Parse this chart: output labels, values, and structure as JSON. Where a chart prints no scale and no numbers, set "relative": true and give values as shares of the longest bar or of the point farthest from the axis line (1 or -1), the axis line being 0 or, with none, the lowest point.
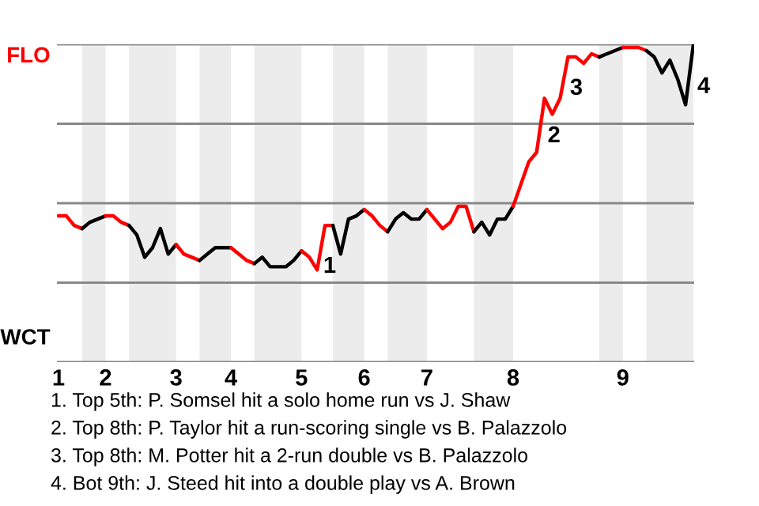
{
  "chart_data": {
    "type": "line",
    "relative": true,
    "categories": [
      "1",
      null,
      null,
      null,
      null,
      null,
      "2",
      null,
      null,
      null,
      null,
      null,
      null,
      null,
      null,
      "3",
      null,
      null,
      null,
      null,
      null,
      null,
      "4",
      null,
      null,
      null,
      null,
      null,
      null,
      null,
      null,
      "5",
      null,
      null,
      null,
      null,
      null,
      null,
      null,
      "6",
      null,
      null,
      null,
      null,
      null,
      null,
      null,
      "7",
      null,
      null,
      null,
      null,
      null,
      null,
      null,
      null,
      null,
      null,
      "8",
      null,
      null,
      null,
      null,
      null,
      null,
      null,
      null,
      null,
      null,
      null,
      null,
      null,
      "9",
      null,
      null,
      null,
      null,
      null,
      null,
      null,
      null,
      null
    ],
    "grid": "y",
    "marker": "none",
    "line_style": "solid",
    "series": [
      {
        "color": "#ff0000",
        "values": [
          0.46,
          0.46,
          0.43,
          0.42,
          null,
          null,
          null,
          null,
          null,
          null,
          null,
          null,
          null,
          null,
          null,
          null,
          null,
          null,
          null,
          null,
          null,
          null,
          null,
          null,
          null,
          null,
          null,
          null,
          null,
          null,
          null,
          null,
          null,
          null,
          null,
          null,
          null,
          null,
          null,
          null,
          null,
          null,
          null,
          null,
          null,
          null,
          null,
          null,
          null,
          null,
          null,
          null,
          null,
          null,
          null,
          null,
          null,
          null,
          null,
          null,
          null,
          null,
          null,
          null,
          null,
          null,
          null,
          null,
          null,
          null,
          null,
          null,
          null,
          null,
          null,
          null,
          null,
          null,
          null,
          null,
          null,
          null
        ]
      },
      {
        "color": "#000000",
        "values": [
          null,
          null,
          null,
          0.42,
          0.44,
          0.45,
          0.46,
          null,
          null,
          null,
          null,
          null,
          null,
          null,
          null,
          null,
          null,
          null,
          null,
          null,
          null,
          null,
          null,
          null,
          null,
          null,
          null,
          null,
          null,
          null,
          null,
          null,
          null,
          null,
          null,
          null,
          null,
          null,
          null,
          null,
          null,
          null,
          null,
          null,
          null,
          null,
          null,
          null,
          null,
          null,
          null,
          null,
          null,
          null,
          null,
          null,
          null,
          null,
          null,
          null,
          null,
          null,
          null,
          null,
          null,
          null,
          null,
          null,
          null,
          null,
          null,
          null,
          null,
          null,
          null,
          null,
          null,
          null,
          null,
          null,
          null,
          null
        ]
      },
      {
        "color": "#ff0000",
        "values": [
          null,
          null,
          null,
          null,
          null,
          null,
          0.46,
          0.46,
          0.44,
          0.43,
          null,
          null,
          null,
          null,
          null,
          null,
          null,
          null,
          null,
          null,
          null,
          null,
          null,
          null,
          null,
          null,
          null,
          null,
          null,
          null,
          null,
          null,
          null,
          null,
          null,
          null,
          null,
          null,
          null,
          null,
          null,
          null,
          null,
          null,
          null,
          null,
          null,
          null,
          null,
          null,
          null,
          null,
          null,
          null,
          null,
          null,
          null,
          null,
          null,
          null,
          null,
          null,
          null,
          null,
          null,
          null,
          null,
          null,
          null,
          null,
          null,
          null,
          null,
          null,
          null,
          null,
          null,
          null,
          null,
          null,
          null,
          null
        ]
      },
      {
        "color": "#000000",
        "values": [
          null,
          null,
          null,
          null,
          null,
          null,
          null,
          null,
          null,
          0.43,
          0.4,
          0.33,
          0.36,
          0.42,
          0.34,
          0.37,
          null,
          null,
          null,
          null,
          null,
          null,
          null,
          null,
          null,
          null,
          null,
          null,
          null,
          null,
          null,
          null,
          null,
          null,
          null,
          null,
          null,
          null,
          null,
          null,
          null,
          null,
          null,
          null,
          null,
          null,
          null,
          null,
          null,
          null,
          null,
          null,
          null,
          null,
          null,
          null,
          null,
          null,
          null,
          null,
          null,
          null,
          null,
          null,
          null,
          null,
          null,
          null,
          null,
          null,
          null,
          null,
          null,
          null,
          null,
          null,
          null,
          null,
          null,
          null,
          null,
          null
        ]
      },
      {
        "color": "#ff0000",
        "values": [
          null,
          null,
          null,
          null,
          null,
          null,
          null,
          null,
          null,
          null,
          null,
          null,
          null,
          null,
          null,
          0.37,
          0.34,
          0.33,
          0.32,
          null,
          null,
          null,
          null,
          null,
          null,
          null,
          null,
          null,
          null,
          null,
          null,
          null,
          null,
          null,
          null,
          null,
          null,
          null,
          null,
          null,
          null,
          null,
          null,
          null,
          null,
          null,
          null,
          null,
          null,
          null,
          null,
          null,
          null,
          null,
          null,
          null,
          null,
          null,
          null,
          null,
          null,
          null,
          null,
          null,
          null,
          null,
          null,
          null,
          null,
          null,
          null,
          null,
          null,
          null,
          null,
          null,
          null,
          null,
          null,
          null,
          null,
          null
        ]
      },
      {
        "color": "#000000",
        "values": [
          null,
          null,
          null,
          null,
          null,
          null,
          null,
          null,
          null,
          null,
          null,
          null,
          null,
          null,
          null,
          null,
          null,
          null,
          0.32,
          0.34,
          0.36,
          0.36,
          0.36,
          null,
          null,
          null,
          null,
          null,
          null,
          null,
          null,
          null,
          null,
          null,
          null,
          null,
          null,
          null,
          null,
          null,
          null,
          null,
          null,
          null,
          null,
          null,
          null,
          null,
          null,
          null,
          null,
          null,
          null,
          null,
          null,
          null,
          null,
          null,
          null,
          null,
          null,
          null,
          null,
          null,
          null,
          null,
          null,
          null,
          null,
          null,
          null,
          null,
          null,
          null,
          null,
          null,
          null,
          null,
          null,
          null,
          null,
          null
        ]
      },
      {
        "color": "#ff0000",
        "values": [
          null,
          null,
          null,
          null,
          null,
          null,
          null,
          null,
          null,
          null,
          null,
          null,
          null,
          null,
          null,
          null,
          null,
          null,
          null,
          null,
          null,
          null,
          0.36,
          0.34,
          0.32,
          0.31,
          null,
          null,
          null,
          null,
          null,
          null,
          null,
          null,
          null,
          null,
          null,
          null,
          null,
          null,
          null,
          null,
          null,
          null,
          null,
          null,
          null,
          null,
          null,
          null,
          null,
          null,
          null,
          null,
          null,
          null,
          null,
          null,
          null,
          null,
          null,
          null,
          null,
          null,
          null,
          null,
          null,
          null,
          null,
          null,
          null,
          null,
          null,
          null,
          null,
          null,
          null,
          null,
          null,
          null,
          null,
          null
        ]
      },
      {
        "color": "#000000",
        "values": [
          null,
          null,
          null,
          null,
          null,
          null,
          null,
          null,
          null,
          null,
          null,
          null,
          null,
          null,
          null,
          null,
          null,
          null,
          null,
          null,
          null,
          null,
          null,
          null,
          null,
          0.31,
          0.33,
          0.3,
          0.3,
          0.3,
          0.32,
          0.35,
          null,
          null,
          null,
          null,
          null,
          null,
          null,
          null,
          null,
          null,
          null,
          null,
          null,
          null,
          null,
          null,
          null,
          null,
          null,
          null,
          null,
          null,
          null,
          null,
          null,
          null,
          null,
          null,
          null,
          null,
          null,
          null,
          null,
          null,
          null,
          null,
          null,
          null,
          null,
          null,
          null,
          null,
          null,
          null,
          null,
          null,
          null,
          null,
          null,
          null
        ]
      },
      {
        "color": "#ff0000",
        "values": [
          null,
          null,
          null,
          null,
          null,
          null,
          null,
          null,
          null,
          null,
          null,
          null,
          null,
          null,
          null,
          null,
          null,
          null,
          null,
          null,
          null,
          null,
          null,
          null,
          null,
          null,
          null,
          null,
          null,
          null,
          null,
          0.35,
          0.33,
          0.29,
          0.43,
          0.43,
          null,
          null,
          null,
          null,
          null,
          null,
          null,
          null,
          null,
          null,
          null,
          null,
          null,
          null,
          null,
          null,
          null,
          null,
          null,
          null,
          null,
          null,
          null,
          null,
          null,
          null,
          null,
          null,
          null,
          null,
          null,
          null,
          null,
          null,
          null,
          null,
          null,
          null,
          null,
          null,
          null,
          null,
          null,
          null,
          null,
          null
        ]
      },
      {
        "color": "#000000",
        "values": [
          null,
          null,
          null,
          null,
          null,
          null,
          null,
          null,
          null,
          null,
          null,
          null,
          null,
          null,
          null,
          null,
          null,
          null,
          null,
          null,
          null,
          null,
          null,
          null,
          null,
          null,
          null,
          null,
          null,
          null,
          null,
          null,
          null,
          null,
          null,
          0.43,
          0.34,
          0.45,
          0.46,
          0.48,
          null,
          null,
          null,
          null,
          null,
          null,
          null,
          null,
          null,
          null,
          null,
          null,
          null,
          null,
          null,
          null,
          null,
          null,
          null,
          null,
          null,
          null,
          null,
          null,
          null,
          null,
          null,
          null,
          null,
          null,
          null,
          null,
          null,
          null,
          null,
          null,
          null,
          null,
          null,
          null,
          null,
          null
        ]
      },
      {
        "color": "#ff0000",
        "values": [
          null,
          null,
          null,
          null,
          null,
          null,
          null,
          null,
          null,
          null,
          null,
          null,
          null,
          null,
          null,
          null,
          null,
          null,
          null,
          null,
          null,
          null,
          null,
          null,
          null,
          null,
          null,
          null,
          null,
          null,
          null,
          null,
          null,
          null,
          null,
          null,
          null,
          null,
          null,
          0.48,
          0.46,
          0.43,
          0.41,
          null,
          null,
          null,
          null,
          null,
          null,
          null,
          null,
          null,
          null,
          null,
          null,
          null,
          null,
          null,
          null,
          null,
          null,
          null,
          null,
          null,
          null,
          null,
          null,
          null,
          null,
          null,
          null,
          null,
          null,
          null,
          null,
          null,
          null,
          null,
          null,
          null,
          null,
          null
        ]
      },
      {
        "color": "#000000",
        "values": [
          null,
          null,
          null,
          null,
          null,
          null,
          null,
          null,
          null,
          null,
          null,
          null,
          null,
          null,
          null,
          null,
          null,
          null,
          null,
          null,
          null,
          null,
          null,
          null,
          null,
          null,
          null,
          null,
          null,
          null,
          null,
          null,
          null,
          null,
          null,
          null,
          null,
          null,
          null,
          null,
          null,
          null,
          0.41,
          0.45,
          0.47,
          0.45,
          0.45,
          0.48,
          null,
          null,
          null,
          null,
          null,
          null,
          null,
          null,
          null,
          null,
          null,
          null,
          null,
          null,
          null,
          null,
          null,
          null,
          null,
          null,
          null,
          null,
          null,
          null,
          null,
          null,
          null,
          null,
          null,
          null,
          null,
          null,
          null,
          null
        ]
      },
      {
        "color": "#ff0000",
        "values": [
          null,
          null,
          null,
          null,
          null,
          null,
          null,
          null,
          null,
          null,
          null,
          null,
          null,
          null,
          null,
          null,
          null,
          null,
          null,
          null,
          null,
          null,
          null,
          null,
          null,
          null,
          null,
          null,
          null,
          null,
          null,
          null,
          null,
          null,
          null,
          null,
          null,
          null,
          null,
          null,
          null,
          null,
          null,
          null,
          null,
          null,
          null,
          0.48,
          0.45,
          0.42,
          0.44,
          0.49,
          0.49,
          0.41,
          null,
          null,
          null,
          null,
          null,
          null,
          null,
          null,
          null,
          null,
          null,
          null,
          null,
          null,
          null,
          null,
          null,
          null,
          null,
          null,
          null,
          null,
          null,
          null,
          null,
          null,
          null,
          null
        ]
      },
      {
        "color": "#000000",
        "values": [
          null,
          null,
          null,
          null,
          null,
          null,
          null,
          null,
          null,
          null,
          null,
          null,
          null,
          null,
          null,
          null,
          null,
          null,
          null,
          null,
          null,
          null,
          null,
          null,
          null,
          null,
          null,
          null,
          null,
          null,
          null,
          null,
          null,
          null,
          null,
          null,
          null,
          null,
          null,
          null,
          null,
          null,
          null,
          null,
          null,
          null,
          null,
          null,
          null,
          null,
          null,
          null,
          null,
          0.41,
          0.44,
          0.4,
          0.45,
          0.45,
          0.49,
          null,
          null,
          null,
          null,
          null,
          null,
          null,
          null,
          null,
          null,
          null,
          null,
          null,
          null,
          null,
          null,
          null,
          null,
          null,
          null,
          null,
          null,
          null
        ]
      },
      {
        "color": "#ff0000",
        "values": [
          null,
          null,
          null,
          null,
          null,
          null,
          null,
          null,
          null,
          null,
          null,
          null,
          null,
          null,
          null,
          null,
          null,
          null,
          null,
          null,
          null,
          null,
          null,
          null,
          null,
          null,
          null,
          null,
          null,
          null,
          null,
          null,
          null,
          null,
          null,
          null,
          null,
          null,
          null,
          null,
          null,
          null,
          null,
          null,
          null,
          null,
          null,
          null,
          null,
          null,
          null,
          null,
          null,
          null,
          null,
          null,
          null,
          null,
          0.49,
          0.56,
          0.63,
          0.66,
          0.83,
          0.78,
          0.83,
          0.96,
          0.96,
          0.94,
          0.97,
          0.96,
          null,
          null,
          null,
          null,
          null,
          null,
          null,
          null,
          null,
          null,
          null,
          null
        ]
      },
      {
        "color": "#000000",
        "values": [
          null,
          null,
          null,
          null,
          null,
          null,
          null,
          null,
          null,
          null,
          null,
          null,
          null,
          null,
          null,
          null,
          null,
          null,
          null,
          null,
          null,
          null,
          null,
          null,
          null,
          null,
          null,
          null,
          null,
          null,
          null,
          null,
          null,
          null,
          null,
          null,
          null,
          null,
          null,
          null,
          null,
          null,
          null,
          null,
          null,
          null,
          null,
          null,
          null,
          null,
          null,
          null,
          null,
          null,
          null,
          null,
          null,
          null,
          null,
          null,
          null,
          null,
          null,
          null,
          null,
          null,
          null,
          null,
          null,
          0.96,
          0.97,
          0.98,
          0.99,
          null,
          null,
          null,
          null,
          null,
          null,
          null,
          null,
          null
        ]
      },
      {
        "color": "#ff0000",
        "values": [
          null,
          null,
          null,
          null,
          null,
          null,
          null,
          null,
          null,
          null,
          null,
          null,
          null,
          null,
          null,
          null,
          null,
          null,
          null,
          null,
          null,
          null,
          null,
          null,
          null,
          null,
          null,
          null,
          null,
          null,
          null,
          null,
          null,
          null,
          null,
          null,
          null,
          null,
          null,
          null,
          null,
          null,
          null,
          null,
          null,
          null,
          null,
          null,
          null,
          null,
          null,
          null,
          null,
          null,
          null,
          null,
          null,
          null,
          null,
          null,
          null,
          null,
          null,
          null,
          null,
          null,
          null,
          null,
          null,
          null,
          null,
          null,
          0.99,
          0.99,
          0.99,
          0.98,
          null,
          null,
          null,
          null,
          null,
          null
        ]
      },
      {
        "color": "#000000",
        "values": [
          null,
          null,
          null,
          null,
          null,
          null,
          null,
          null,
          null,
          null,
          null,
          null,
          null,
          null,
          null,
          null,
          null,
          null,
          null,
          null,
          null,
          null,
          null,
          null,
          null,
          null,
          null,
          null,
          null,
          null,
          null,
          null,
          null,
          null,
          null,
          null,
          null,
          null,
          null,
          null,
          null,
          null,
          null,
          null,
          null,
          null,
          null,
          null,
          null,
          null,
          null,
          null,
          null,
          null,
          null,
          null,
          null,
          null,
          null,
          null,
          null,
          null,
          null,
          null,
          null,
          null,
          null,
          null,
          null,
          null,
          null,
          null,
          null,
          null,
          null,
          0.98,
          0.96,
          0.91,
          0.95,
          0.89,
          0.81,
          1
        ]
      }
    ],
    "annotations": [
      "FLO",
      "WCT",
      "1",
      "2",
      "3",
      "4",
      "1. Top 5th: P. Somsel hit a solo home run vs J. Shaw",
      "2. Top 8th: P. Taylor hit a run-scoring single vs B. Palazzolo",
      "3. Top 8th: M. Potter hit a 2-run double vs B. Palazzolo",
      "4. Bot 9th: J. Steed hit into a double play vs A. Brown"
    ]
  }
}
